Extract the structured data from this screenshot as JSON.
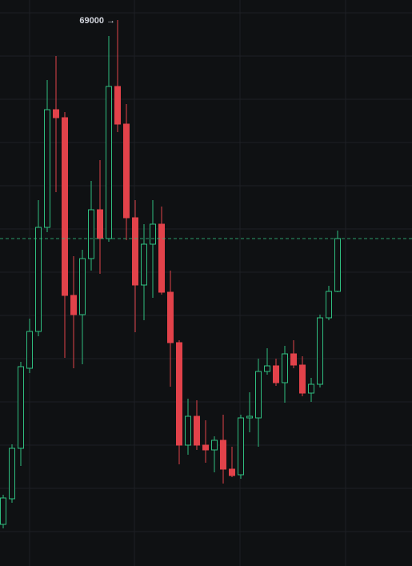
{
  "chart_data": {
    "type": "candlestick",
    "annotation": "69000 →",
    "up_color": "#2fbd7f",
    "down_color": "#e2424a",
    "background": "#0f1113",
    "ylim": [
      800,
      71500
    ],
    "open": [
      6000,
      9200,
      15500,
      25500,
      30100,
      43100,
      57800,
      56800,
      34600,
      32200,
      39200,
      45300,
      41700,
      60700,
      56000,
      44300,
      35900,
      41000,
      43500,
      35000,
      28700,
      15900,
      19500,
      15900,
      15300,
      16500,
      12900,
      12200,
      19300,
      19300,
      25100,
      25800,
      23700,
      27300,
      25900,
      22400,
      23500,
      31800,
      35100
    ],
    "high": [
      9700,
      16000,
      26300,
      31700,
      46500,
      61500,
      64500,
      57500,
      39500,
      40300,
      48900,
      51500,
      67000,
      69000,
      58500,
      46500,
      43500,
      46500,
      45700,
      37700,
      29000,
      21700,
      21500,
      19000,
      17000,
      19700,
      15700,
      19700,
      22500,
      26700,
      28000,
      26700,
      28300,
      29000,
      27000,
      24300,
      32200,
      35800,
      42700
    ],
    "low": [
      5500,
      8700,
      13300,
      24900,
      29500,
      42500,
      47500,
      26800,
      25500,
      26000,
      37700,
      37300,
      41300,
      55000,
      41500,
      30000,
      31500,
      34300,
      34700,
      23200,
      13500,
      14700,
      15300,
      13700,
      12500,
      11100,
      11900,
      11700,
      17500,
      15700,
      24700,
      23300,
      21200,
      25500,
      22000,
      21300,
      23100,
      31500,
      35000
    ],
    "close": [
      9300,
      15500,
      25700,
      30100,
      43100,
      57800,
      56800,
      34600,
      32200,
      39200,
      45300,
      41700,
      60700,
      56000,
      44300,
      35900,
      41000,
      43500,
      35000,
      28700,
      15900,
      19500,
      15900,
      15300,
      16500,
      12900,
      12100,
      19300,
      19500,
      25100,
      25800,
      23700,
      27300,
      25900,
      22400,
      23500,
      31800,
      35100,
      41700
    ]
  }
}
